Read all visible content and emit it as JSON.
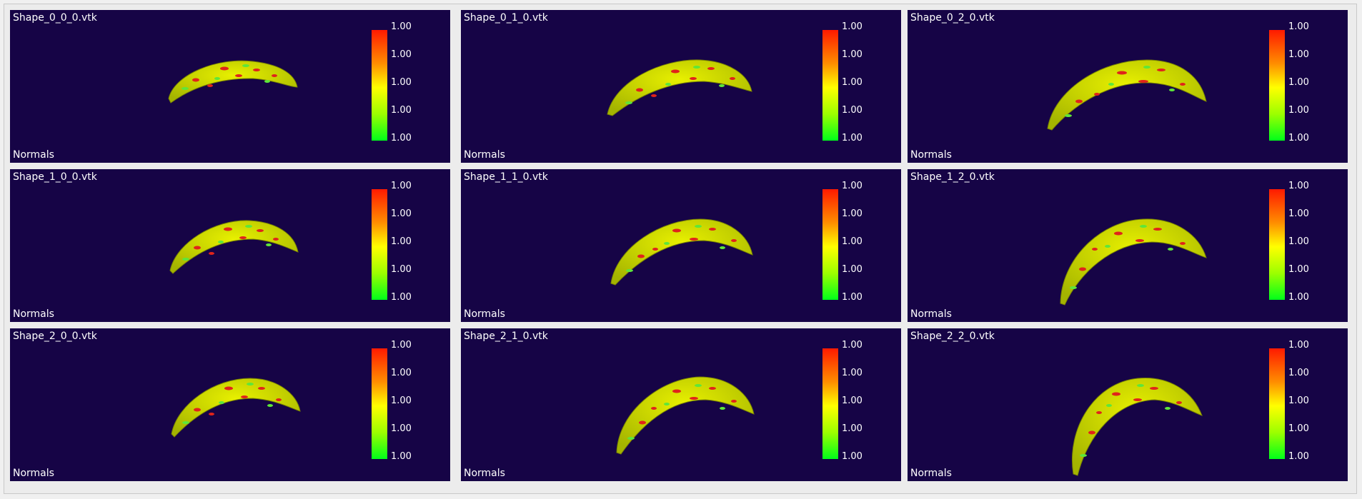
{
  "colors": {
    "background": "#160446",
    "text": "#ffffff",
    "bar_top": "#ff1a00",
    "bar_mid": "#ffff00",
    "bar_bottom": "#00ff1a",
    "mesh_base": "#c9d800",
    "mesh_spot_red": "#e0241a",
    "mesh_spot_green": "#5ee63a"
  },
  "viewports": [
    {
      "title": "Shape_0_0_0.vtk",
      "label": "Normals",
      "ticks": [
        "1.00",
        "1.00",
        "1.00",
        "1.00",
        "1.00"
      ]
    },
    {
      "title": "Shape_0_1_0.vtk",
      "label": "Normals",
      "ticks": [
        "1.00",
        "1.00",
        "1.00",
        "1.00",
        "1.00"
      ]
    },
    {
      "title": "Shape_0_2_0.vtk",
      "label": "Normals",
      "ticks": [
        "1.00",
        "1.00",
        "1.00",
        "1.00",
        "1.00"
      ]
    },
    {
      "title": "Shape_1_0_0.vtk",
      "label": "Normals",
      "ticks": [
        "1.00",
        "1.00",
        "1.00",
        "1.00",
        "1.00"
      ]
    },
    {
      "title": "Shape_1_1_0.vtk",
      "label": "Normals",
      "ticks": [
        "1.00",
        "1.00",
        "1.00",
        "1.00",
        "1.00"
      ]
    },
    {
      "title": "Shape_1_2_0.vtk",
      "label": "Normals",
      "ticks": [
        "1.00",
        "1.00",
        "1.00",
        "1.00",
        "1.00"
      ]
    },
    {
      "title": "Shape_2_0_0.vtk",
      "label": "Normals",
      "ticks": [
        "1.00",
        "1.00",
        "1.00",
        "1.00",
        "1.00"
      ]
    },
    {
      "title": "Shape_2_1_0.vtk",
      "label": "Normals",
      "ticks": [
        "1.00",
        "1.00",
        "1.00",
        "1.00",
        "1.00"
      ]
    },
    {
      "title": "Shape_2_2_0.vtk",
      "label": "Normals",
      "ticks": [
        "1.00",
        "1.00",
        "1.00",
        "1.00",
        "1.00"
      ]
    }
  ]
}
